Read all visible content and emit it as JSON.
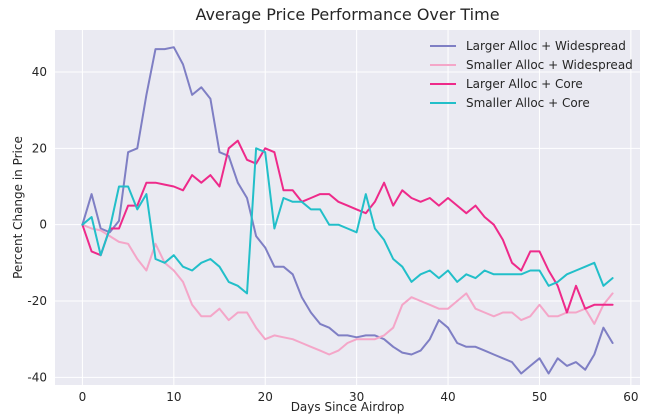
{
  "chart_data": {
    "type": "line",
    "title": "Average Price Performance Over Time",
    "xlabel": "Days Since Airdrop",
    "ylabel": "Percent Change in Price",
    "xlim": [
      -3,
      61
    ],
    "ylim": [
      -42,
      51
    ],
    "xticks": [
      0,
      10,
      20,
      30,
      40,
      50,
      60
    ],
    "yticks": [
      -40,
      -20,
      0,
      20,
      40
    ],
    "grid": true,
    "legend_position": "top-right",
    "x": [
      0,
      1,
      2,
      3,
      4,
      5,
      6,
      7,
      8,
      9,
      10,
      11,
      12,
      13,
      14,
      15,
      16,
      17,
      18,
      19,
      20,
      21,
      22,
      23,
      24,
      25,
      26,
      27,
      28,
      29,
      30,
      31,
      32,
      33,
      34,
      35,
      36,
      37,
      38,
      39,
      40,
      41,
      42,
      43,
      44,
      45,
      46,
      47,
      48,
      49,
      50,
      51,
      52,
      53,
      54,
      55,
      56,
      57,
      58
    ],
    "series": [
      {
        "name": "Larger Alloc + Widespread",
        "color": "#7f7fc4",
        "values": [
          0,
          8,
          -1,
          -2,
          1,
          19,
          20,
          34,
          46,
          46,
          46.5,
          42,
          34,
          36,
          33,
          19,
          18,
          11,
          7,
          -3,
          -6,
          -11,
          -11,
          -13,
          -19,
          -23,
          -26,
          -27,
          -29,
          -29,
          -29.5,
          -29,
          -29,
          -30,
          -32,
          -33.5,
          -34,
          -33,
          -30,
          -25,
          -27,
          -31,
          -32,
          -32,
          -33,
          -34,
          -35,
          -36,
          -39,
          -37,
          -35,
          -39,
          -35,
          -37,
          -36,
          -38,
          -34,
          -27,
          -31
        ]
      },
      {
        "name": "Smaller Alloc + Widespread",
        "color": "#f4a6c8",
        "values": [
          0,
          -1,
          -1.5,
          -3,
          -4.5,
          -5,
          -9,
          -12,
          -5,
          -10,
          -12,
          -15,
          -21,
          -24,
          -24,
          -22,
          -25,
          -23,
          -23,
          -27,
          -30,
          -29,
          -29.5,
          -30,
          -31,
          -32,
          -33,
          -34,
          -33,
          -31,
          -30,
          -30,
          -30,
          -29,
          -27,
          -21,
          -19,
          -20,
          -21,
          -22,
          -22,
          -20,
          -18,
          -22,
          -23,
          -24,
          -23,
          -23,
          -25,
          -24,
          -21,
          -24,
          -24,
          -23,
          -23,
          -22,
          -26,
          -21,
          -18
        ]
      },
      {
        "name": "Larger Alloc + Core",
        "color": "#ee2a8a",
        "values": [
          0,
          -7,
          -8,
          -1,
          -1,
          5,
          5,
          11,
          11,
          10.5,
          10,
          9,
          13,
          11,
          13,
          10,
          20,
          22,
          17,
          16,
          20,
          19,
          9,
          9,
          6,
          7,
          8,
          8,
          6,
          5,
          4,
          3,
          6,
          11,
          5,
          9,
          7,
          6,
          7,
          5,
          7,
          5,
          3,
          5,
          2,
          0,
          -4,
          -10,
          -12,
          -7,
          -7,
          -12,
          -16,
          -23,
          -16,
          -22,
          -21,
          -21,
          -21
        ]
      },
      {
        "name": "Smaller Alloc + Core",
        "color": "#22bfc9",
        "values": [
          0,
          2,
          -8,
          -1,
          10,
          10,
          4,
          8,
          -9,
          -10,
          -8,
          -11,
          -12,
          -10,
          -9,
          -11,
          -15,
          -16,
          -18,
          20,
          19,
          -1,
          7,
          6,
          6,
          4,
          4,
          0,
          0,
          -1,
          -2,
          8,
          -1,
          -4,
          -9,
          -11,
          -15,
          -13,
          -12,
          -14,
          -12,
          -15,
          -13,
          -14,
          -12,
          -13,
          -13,
          -13,
          -13,
          -12,
          -12,
          -16,
          -15,
          -13,
          -12,
          -11,
          -10,
          -16,
          -14
        ]
      }
    ]
  }
}
